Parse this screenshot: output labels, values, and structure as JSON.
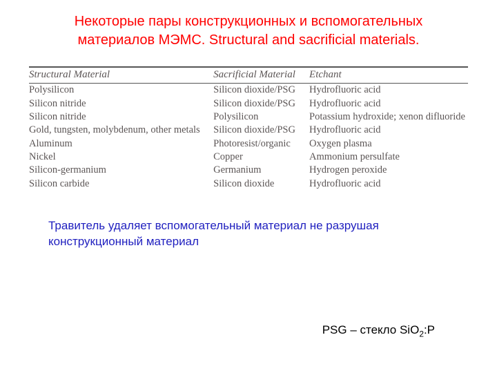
{
  "title": "Некоторые пары конструкционных и вспомогательных материалов МЭМС. Structural and sacrificial materials.",
  "table": {
    "columns": [
      "Structural Material",
      "Sacrificial Material",
      "Etchant"
    ],
    "rows": [
      [
        "Polysilicon",
        "Silicon dioxide/PSG",
        "Hydrofluoric acid"
      ],
      [
        "Silicon nitride",
        "Silicon dioxide/PSG",
        "Hydrofluoric acid"
      ],
      [
        "Silicon nitride",
        "Polysilicon",
        "Potassium hydroxide; xenon difluoride"
      ],
      [
        "Gold, tungsten, molybdenum, other metals",
        "Silicon dioxide/PSG",
        "Hydrofluoric acid"
      ],
      [
        "Aluminum",
        "Photoresist/organic",
        "Oxygen plasma"
      ],
      [
        "Nickel",
        "Copper",
        "Ammonium persulfate"
      ],
      [
        "Silicon-germanium",
        "Germanium",
        "Hydrogen peroxide"
      ],
      [
        "Silicon carbide",
        "Silicon dioxide",
        "Hydrofluoric acid"
      ]
    ]
  },
  "note": "Травитель  удаляет вспомогательный материал не разрушая конструкционный материал",
  "psg_prefix": "PSG – стекло SiO",
  "psg_sub": "2",
  "psg_suffix": ":P",
  "colors": {
    "title": "#ff0000",
    "note": "#1f1fbf",
    "table_text": "#5b5555",
    "rule": "#555555",
    "background": "#ffffff"
  },
  "fontsizes": {
    "title": 20,
    "table_header": 15,
    "table_cell": 14.5,
    "note": 17,
    "psg": 17
  }
}
